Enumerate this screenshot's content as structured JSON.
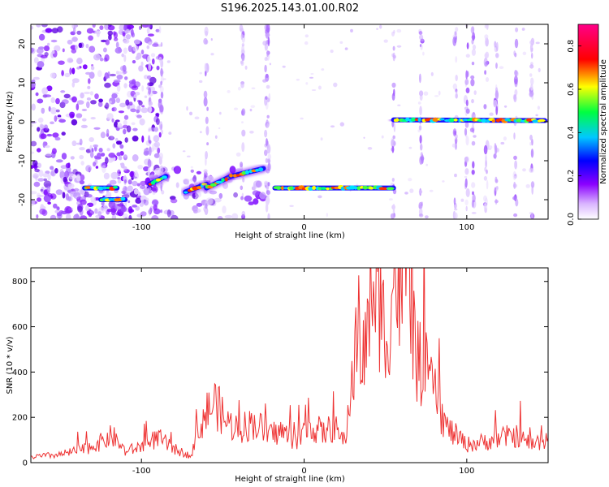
{
  "title": "S196.2025.143.01.00.R02",
  "chart_data": [
    {
      "type": "heatmap",
      "xlabel": "Height of straight line (km)",
      "ylabel": "Frequency (Hz)",
      "xlim": [
        -168,
        150
      ],
      "ylim": [
        -25,
        25
      ],
      "xticks": [
        -100,
        0,
        100
      ],
      "xtick_labels": [
        "-100",
        "0",
        "100"
      ],
      "yticks": [
        -20,
        -10,
        0,
        10,
        20
      ],
      "ytick_labels": [
        "-20",
        "-10",
        "0",
        "10",
        "20"
      ],
      "colorbar": {
        "label": "Normalized spectral amplitude",
        "range": [
          0,
          0.9
        ],
        "ticks": [
          0,
          0.2,
          0.4,
          0.6,
          0.8
        ],
        "tick_labels": [
          "0.0",
          "0.2",
          "0.4",
          "0.6",
          "0.8"
        ],
        "colormap": "rainbow (white-violet-blue-cyan-green-yellow-red-magenta)"
      },
      "traces": [
        {
          "x": [
            -135,
            -115
          ],
          "y": [
            -17,
            -17
          ]
        },
        {
          "x": [
            -125,
            -110
          ],
          "y": [
            -20,
            -20
          ]
        },
        {
          "x": [
            -95,
            -85
          ],
          "y": [
            -16,
            -14
          ]
        },
        {
          "x": [
            -73,
            -60
          ],
          "y": [
            -18,
            -16
          ]
        },
        {
          "x": [
            -60,
            -45
          ],
          "y": [
            -17,
            -14
          ]
        },
        {
          "x": [
            -45,
            -25
          ],
          "y": [
            -14,
            -12
          ]
        },
        {
          "x": [
            -18,
            55
          ],
          "y": [
            -17,
            -17
          ]
        },
        {
          "x": [
            55,
            148
          ],
          "y": [
            0.5,
            0.3
          ]
        }
      ]
    },
    {
      "type": "line",
      "xlabel": "Height of straight line (km)",
      "ylabel": "SNR (10 * v/v)",
      "xlim": [
        -168,
        150
      ],
      "ylim": [
        0,
        860
      ],
      "xticks": [
        -100,
        0,
        100
      ],
      "xtick_labels": [
        "-100",
        "0",
        "100"
      ],
      "yticks": [
        0,
        200,
        400,
        600,
        800
      ],
      "ytick_labels": [
        "0",
        "200",
        "400",
        "600",
        "800"
      ],
      "color": "#ee3333",
      "x": [
        -168,
        -150,
        -135,
        -125,
        -118,
        -110,
        -100,
        -90,
        -80,
        -70,
        -62,
        -55,
        -48,
        -40,
        -30,
        -22,
        -15,
        -5,
        5,
        12,
        18,
        25,
        30,
        33,
        37,
        42,
        47,
        50,
        55,
        58,
        62,
        65,
        70,
        75,
        80,
        88,
        95,
        100,
        110,
        120,
        130,
        140,
        150
      ],
      "y": [
        25,
        35,
        60,
        90,
        120,
        50,
        70,
        110,
        60,
        30,
        200,
        270,
        180,
        150,
        180,
        120,
        140,
        100,
        160,
        130,
        160,
        90,
        400,
        600,
        450,
        800,
        700,
        550,
        820,
        780,
        850,
        700,
        440,
        400,
        300,
        150,
        110,
        80,
        90,
        110,
        120,
        80,
        110
      ]
    }
  ]
}
